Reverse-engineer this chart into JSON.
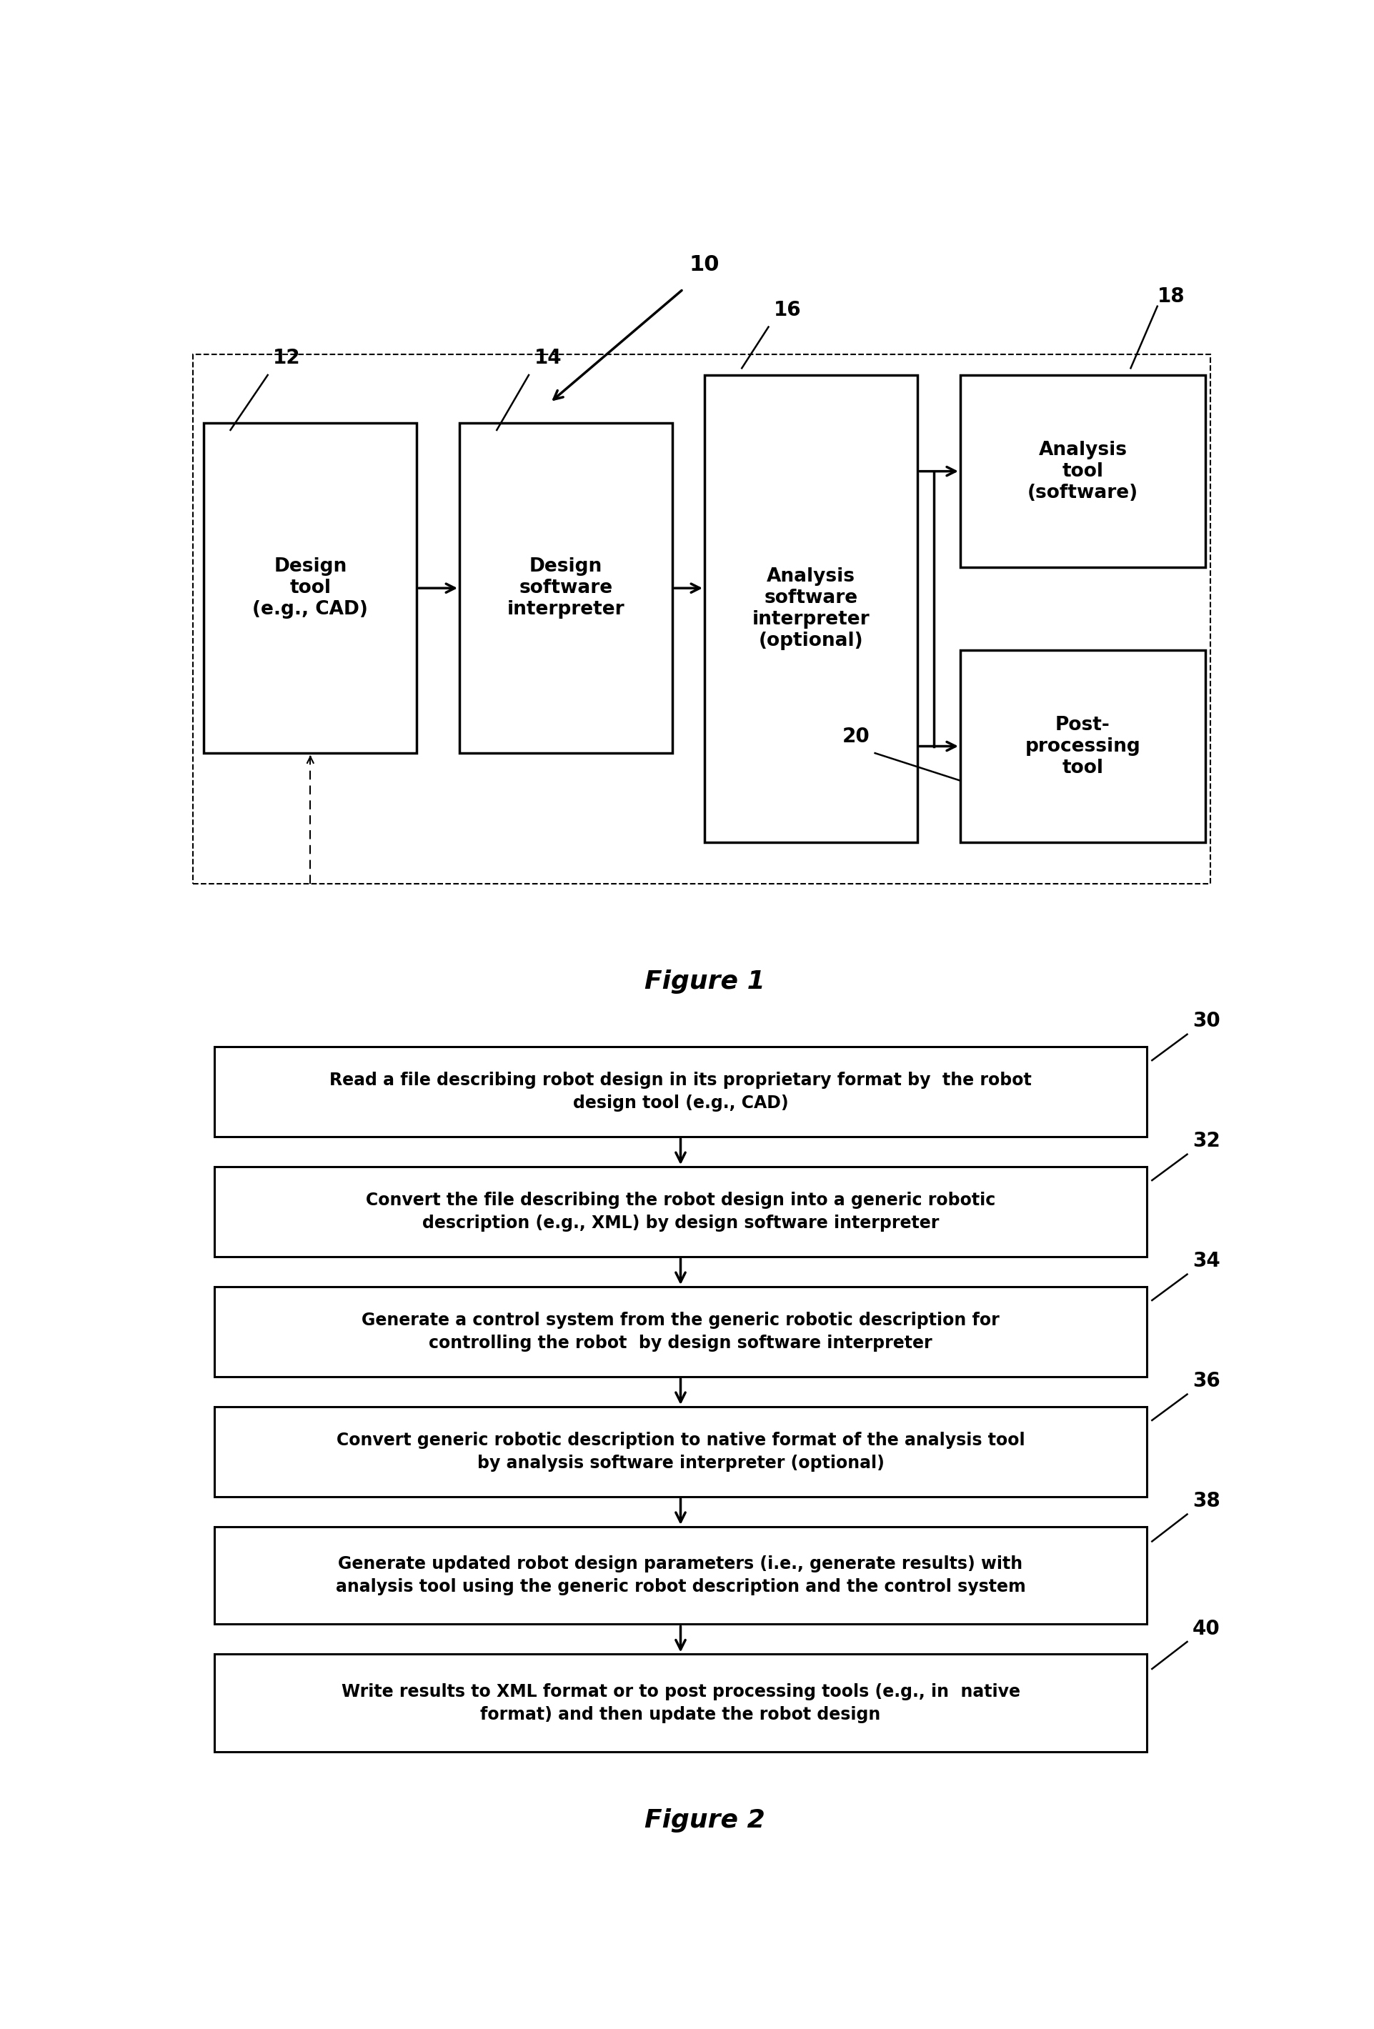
{
  "bg_color": "#ffffff",
  "fig1": {
    "title": "Figure 1",
    "box12": {
      "label": "Design\ntool\n(e.g., CAD)",
      "id": "12"
    },
    "box14": {
      "label": "Design\nsoftware\ninterpreter",
      "id": "14"
    },
    "box16": {
      "label": "Analysis\nsoftware\ninterpreter\n(optional)",
      "id": "16"
    },
    "box18": {
      "label": "Analysis\ntool\n(software)",
      "id": "18"
    },
    "box20": {
      "label": "Post-\nprocessing\ntool",
      "id": "20"
    },
    "label10": "10"
  },
  "fig2": {
    "title": "Figure 2",
    "boxes": [
      {
        "id": "30",
        "label": "Read a file describing robot design in its proprietary format by  the robot\ndesign tool (e.g., CAD)"
      },
      {
        "id": "32",
        "label": "Convert the file describing the robot design into a generic robotic\ndescription (e.g., XML) by design software interpreter"
      },
      {
        "id": "34",
        "label": "Generate a control system from the generic robotic description for\ncontrolling the robot  by design software interpreter"
      },
      {
        "id": "36",
        "label": "Convert generic robotic description to native format of the analysis tool\nby analysis software interpreter (optional)"
      },
      {
        "id": "38",
        "label": "Generate updated robot design parameters (i.e., generate results) with\nanalysis tool using the generic robot description and the control system"
      },
      {
        "id": "40",
        "label": "Write results to XML format or to post processing tools (e.g., in  native\nformat) and then update the robot design"
      }
    ]
  }
}
